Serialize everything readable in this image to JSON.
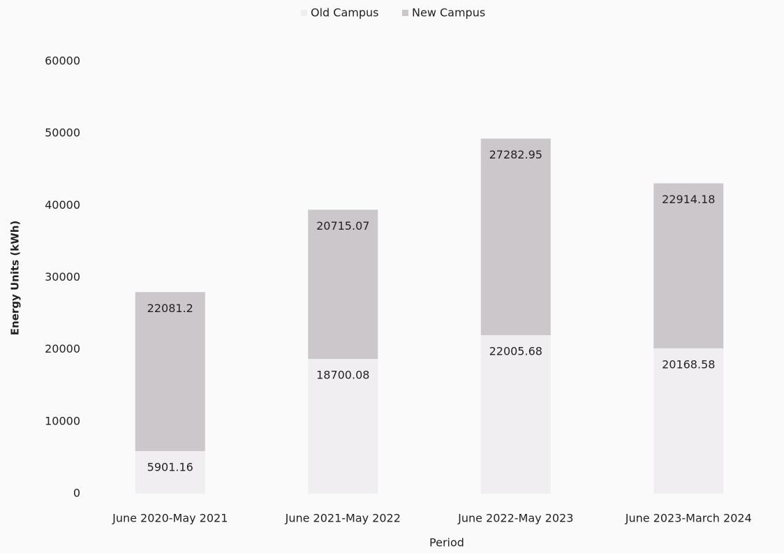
{
  "chart_data": {
    "type": "stacked_bar",
    "categories": [
      "June 2020-May 2021",
      "June 2021-May 2022",
      "June 2022-May 2023",
      "June 2023-March 2024"
    ],
    "series": [
      {
        "name": "Old Campus",
        "color": "#f1eef1",
        "values": [
          5901.16,
          18700.08,
          22005.68,
          20168.58
        ]
      },
      {
        "name": "New Campus",
        "color": "#cbc7cb",
        "values": [
          22081.2,
          20715.07,
          27282.95,
          22914.18
        ]
      }
    ],
    "x_label": "Period",
    "y_label": "Energy Units (kWh)",
    "ylim": [
      0,
      60000
    ],
    "yticks": [
      0,
      10000,
      20000,
      30000,
      40000,
      50000,
      60000
    ],
    "grid": false,
    "legend": "top"
  }
}
